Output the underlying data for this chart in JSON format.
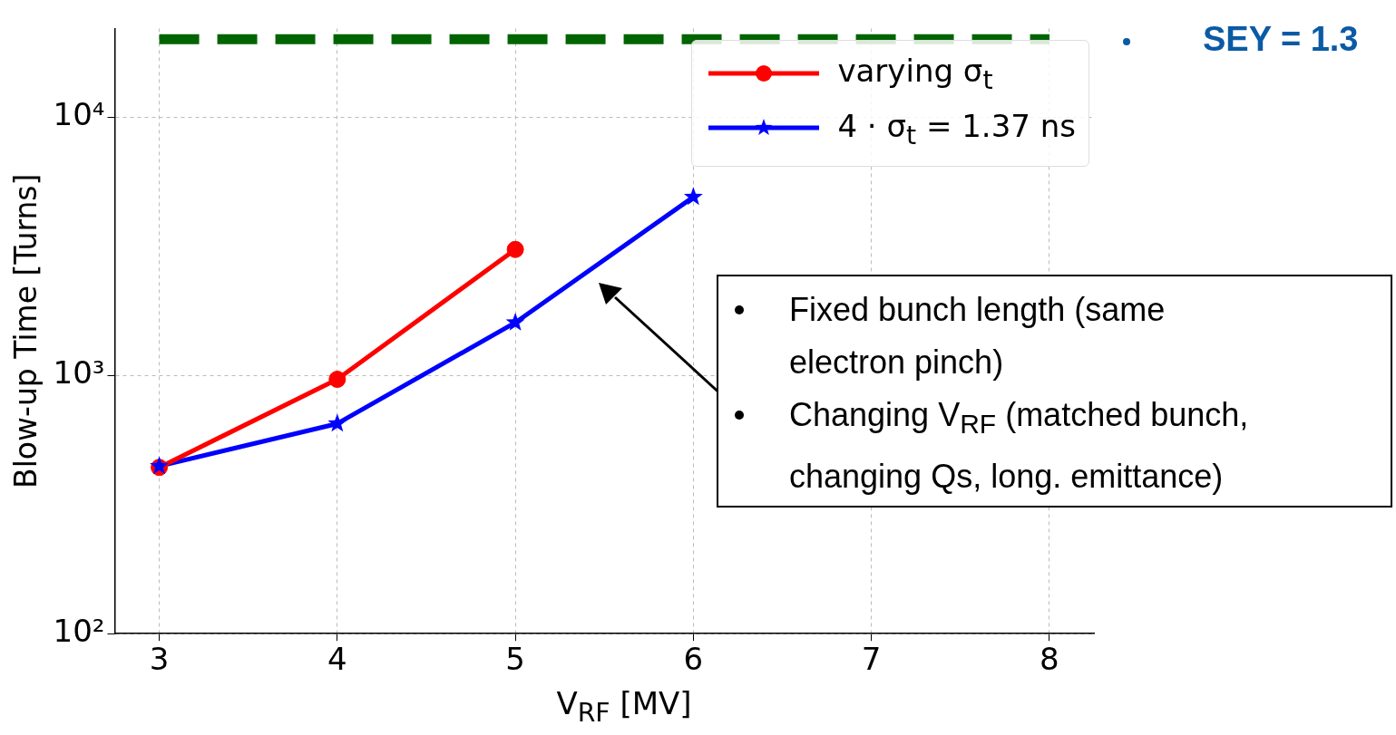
{
  "chart_data": {
    "type": "line",
    "xlabel": "V$_{RF}$ [MV]",
    "ylabel": "Blow-up Time [Turns]",
    "xlim": [
      2.75,
      8.25
    ],
    "xticks": [
      3,
      4,
      5,
      6,
      7,
      8
    ],
    "ylim": [
      100,
      22000
    ],
    "yticks": [
      {
        "value": 100,
        "label": "10²"
      },
      {
        "value": 1000,
        "label": "10³"
      },
      {
        "value": 10000,
        "label": "10⁴"
      }
    ],
    "log": "y",
    "grid": true,
    "legend": "top right",
    "series": [
      {
        "name": "varying σ$_{t}$",
        "color": "#ff0000",
        "marker": "circle",
        "line_style": "solid",
        "x": [
          3,
          4,
          5
        ],
        "values": [
          440,
          965,
          3070
        ]
      },
      {
        "name": "4 · σ$_{t}$ = 1.37 ns",
        "color": "#0000ff",
        "marker": "star",
        "line_style": "solid",
        "x": [
          3,
          4,
          5,
          6
        ],
        "values": [
          445,
          650,
          1600,
          4900
        ]
      },
      {
        "color": "#006400",
        "marker": "none",
        "line_style": "dashed",
        "x": [
          3,
          8
        ],
        "values": [
          20000,
          20000
        ]
      }
    ],
    "annotations": [
      "Fixed bunch length (same electron pinch)",
      "Changing V$_{RF}$ (matched bunch, changing Qs, long. emittance)",
      "SEY = 1.3"
    ]
  }
}
